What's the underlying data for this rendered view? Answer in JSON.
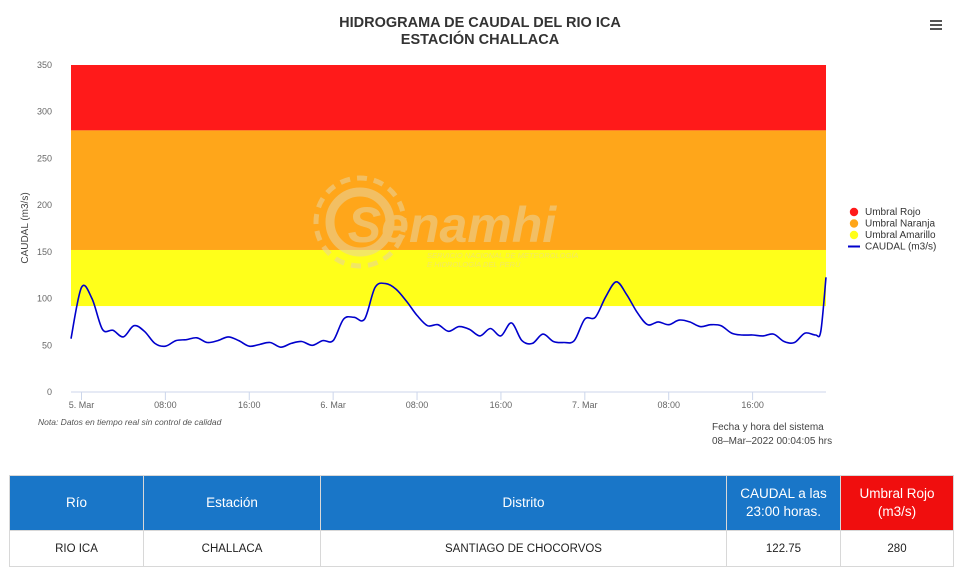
{
  "chart_data": {
    "type": "area",
    "title": "HIDROGRAMA DE CAUDAL DEL RIO ICA",
    "subtitle": "ESTACIÓN CHALLACA",
    "ylabel": "CAUDAL (m3/s)",
    "ylim": [
      0,
      350
    ],
    "yticks": [
      0,
      50,
      100,
      150,
      200,
      250,
      300,
      350
    ],
    "x_axis": {
      "type": "datetime",
      "start": "2022-03-04 23:00",
      "end": "2022-03-07 23:00",
      "ticks": [
        {
          "t": "2022-03-05 00:00",
          "label": "5. Mar"
        },
        {
          "t": "2022-03-05 08:00",
          "label": "08:00"
        },
        {
          "t": "2022-03-05 16:00",
          "label": "16:00"
        },
        {
          "t": "2022-03-06 00:00",
          "label": "6. Mar"
        },
        {
          "t": "2022-03-06 08:00",
          "label": "08:00"
        },
        {
          "t": "2022-03-06 16:00",
          "label": "16:00"
        },
        {
          "t": "2022-03-07 00:00",
          "label": "7. Mar"
        },
        {
          "t": "2022-03-07 08:00",
          "label": "08:00"
        },
        {
          "t": "2022-03-07 16:00",
          "label": "16:00"
        }
      ]
    },
    "bands": [
      {
        "name": "Umbral Rojo",
        "from": 280,
        "to": 350,
        "color": "#ff1a1a"
      },
      {
        "name": "Umbral Naranja",
        "from": 152,
        "to": 280,
        "color": "#ffa61a"
      },
      {
        "name": "Umbral Amarillo",
        "from": 92,
        "to": 152,
        "color": "#ffff1a"
      }
    ],
    "series": [
      {
        "name": "CAUDAL (m3/s)",
        "color": "#0000cc",
        "points": [
          [
            "2022-03-04 23:00",
            57
          ],
          [
            "2022-03-05 00:00",
            112
          ],
          [
            "2022-03-05 01:00",
            100
          ],
          [
            "2022-03-05 02:00",
            67
          ],
          [
            "2022-03-05 03:00",
            66
          ],
          [
            "2022-03-05 04:00",
            59
          ],
          [
            "2022-03-05 05:00",
            71
          ],
          [
            "2022-03-05 06:00",
            65
          ],
          [
            "2022-03-05 07:00",
            52
          ],
          [
            "2022-03-05 08:00",
            49
          ],
          [
            "2022-03-05 09:00",
            55
          ],
          [
            "2022-03-05 10:00",
            56
          ],
          [
            "2022-03-05 11:00",
            58
          ],
          [
            "2022-03-05 12:00",
            53
          ],
          [
            "2022-03-05 13:00",
            55
          ],
          [
            "2022-03-05 14:00",
            59
          ],
          [
            "2022-03-05 15:00",
            55
          ],
          [
            "2022-03-05 16:00",
            49
          ],
          [
            "2022-03-05 17:00",
            51
          ],
          [
            "2022-03-05 18:00",
            53
          ],
          [
            "2022-03-05 19:00",
            48
          ],
          [
            "2022-03-05 20:00",
            52
          ],
          [
            "2022-03-05 21:00",
            54
          ],
          [
            "2022-03-05 22:00",
            50
          ],
          [
            "2022-03-05 23:00",
            55
          ],
          [
            "2022-03-06 00:00",
            55
          ],
          [
            "2022-03-06 01:00",
            78
          ],
          [
            "2022-03-06 02:00",
            80
          ],
          [
            "2022-03-06 03:00",
            78
          ],
          [
            "2022-03-06 04:00",
            112
          ],
          [
            "2022-03-06 05:00",
            116
          ],
          [
            "2022-03-06 06:00",
            110
          ],
          [
            "2022-03-06 07:00",
            97
          ],
          [
            "2022-03-06 08:00",
            82
          ],
          [
            "2022-03-06 09:00",
            71
          ],
          [
            "2022-03-06 10:00",
            72
          ],
          [
            "2022-03-06 11:00",
            65
          ],
          [
            "2022-03-06 12:00",
            70
          ],
          [
            "2022-03-06 13:00",
            67
          ],
          [
            "2022-03-06 14:00",
            60
          ],
          [
            "2022-03-06 15:00",
            68
          ],
          [
            "2022-03-06 16:00",
            60
          ],
          [
            "2022-03-06 17:00",
            74
          ],
          [
            "2022-03-06 18:00",
            55
          ],
          [
            "2022-03-06 19:00",
            52
          ],
          [
            "2022-03-06 20:00",
            62
          ],
          [
            "2022-03-06 21:00",
            54
          ],
          [
            "2022-03-06 22:00",
            53
          ],
          [
            "2022-03-06 23:00",
            55
          ],
          [
            "2022-03-07 00:00",
            78
          ],
          [
            "2022-03-07 01:00",
            80
          ],
          [
            "2022-03-07 02:00",
            102
          ],
          [
            "2022-03-07 03:00",
            118
          ],
          [
            "2022-03-07 04:00",
            104
          ],
          [
            "2022-03-07 05:00",
            85
          ],
          [
            "2022-03-07 06:00",
            72
          ],
          [
            "2022-03-07 07:00",
            75
          ],
          [
            "2022-03-07 08:00",
            72
          ],
          [
            "2022-03-07 09:00",
            77
          ],
          [
            "2022-03-07 10:00",
            75
          ],
          [
            "2022-03-07 11:00",
            70
          ],
          [
            "2022-03-07 12:00",
            72
          ],
          [
            "2022-03-07 13:00",
            71
          ],
          [
            "2022-03-07 14:00",
            63
          ],
          [
            "2022-03-07 15:00",
            61
          ],
          [
            "2022-03-07 16:00",
            61
          ],
          [
            "2022-03-07 17:00",
            60
          ],
          [
            "2022-03-07 18:00",
            62
          ],
          [
            "2022-03-07 19:00",
            54
          ],
          [
            "2022-03-07 20:00",
            53
          ],
          [
            "2022-03-07 21:00",
            63
          ],
          [
            "2022-03-07 22:00",
            61
          ],
          [
            "2022-03-07 22:30",
            65
          ],
          [
            "2022-03-07 23:00",
            122.75
          ]
        ]
      }
    ],
    "legend": {
      "position": "right",
      "items": [
        {
          "name": "Umbral Rojo",
          "color": "#ff1a1a",
          "symbol": "circle"
        },
        {
          "name": "Umbral Naranja",
          "color": "#ffa61a",
          "symbol": "circle"
        },
        {
          "name": "Umbral Amarillo",
          "color": "#ffff1a",
          "symbol": "circle"
        },
        {
          "name": "CAUDAL (m3/s)",
          "color": "#0000cc",
          "symbol": "line"
        }
      ]
    },
    "grid": false,
    "note": "Nota: Datos en tiempo real sin control de calidad",
    "system_time_label": "Fecha y hora del sistema",
    "system_time_value": "08–Mar–2022 00:04:05 hrs"
  },
  "watermark": {
    "logo_text": "Senamhi",
    "line1": "SERVICIO NACIONAL DE METEOROLOGÍA",
    "line2": "E HIDROLOGÍA DEL PERÚ",
    "color": "#e8d4a0"
  },
  "menu": {
    "icon": "hamburger-menu-icon"
  },
  "table": {
    "headers": {
      "rio": "Río",
      "estacion": "Estación",
      "distrito": "Distrito",
      "caudal": "CAUDAL a las 23:00 horas.",
      "umbral_rojo": "Umbral Rojo (m3/s)"
    },
    "row": {
      "rio": "RIO ICA",
      "estacion": "CHALLACA",
      "distrito": "SANTIAGO DE CHOCORVOS",
      "caudal": "122.75",
      "umbral_rojo": "280"
    }
  },
  "colors": {
    "header_blue": "#1976c8",
    "header_red": "#f00e0e"
  }
}
